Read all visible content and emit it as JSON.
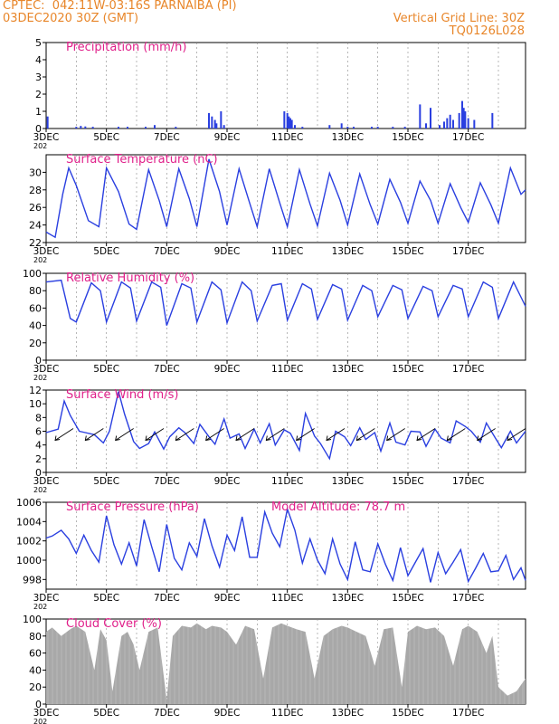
{
  "header": {
    "source": "CPTEC:",
    "location": "042:11W-03:16S  PARNAIBA (PI)",
    "run": "03DEC2020 30Z (GMT)",
    "grid_note": "Vertical Grid Line: 30Z",
    "product_code": "TQ0126L028"
  },
  "x_axis": {
    "tick_labels": [
      "3DEC",
      "5DEC",
      "7DEC",
      "9DEC",
      "11DEC",
      "13DEC",
      "15DEC",
      "17DEC"
    ],
    "tick_days": [
      0,
      2,
      4,
      6,
      8,
      10,
      12,
      14
    ],
    "year_fragment": "202",
    "range_days": [
      0,
      15.9
    ]
  },
  "colors": {
    "title": "#e0208a",
    "line": "#2a3fe0",
    "bar": "#2a3fe0",
    "cloud": "#a8a8a8",
    "header": "#e8862a",
    "grid": "#888888"
  },
  "chart_data": [
    {
      "id": "precip",
      "type": "bar",
      "title": "Precipitation (mm/h)",
      "ylim": [
        0,
        5
      ],
      "yticks": [
        0,
        1,
        2,
        3,
        4,
        5
      ],
      "x": [
        0.05,
        1.0,
        1.15,
        1.3,
        1.55,
        2.4,
        2.7,
        3.3,
        3.6,
        4.3,
        5.4,
        5.5,
        5.6,
        5.65,
        5.8,
        5.9,
        7.9,
        8.0,
        8.05,
        8.1,
        8.15,
        8.25,
        8.5,
        9.4,
        9.8,
        10.0,
        10.2,
        10.8,
        11.0,
        11.5,
        11.9,
        12.4,
        12.6,
        12.75,
        13.05,
        13.2,
        13.3,
        13.4,
        13.5,
        13.7,
        13.8,
        13.85,
        13.9,
        14.0,
        14.2,
        14.8
      ],
      "values": [
        0.7,
        0.1,
        0.15,
        0.12,
        0.1,
        0.1,
        0.1,
        0.1,
        0.2,
        0.1,
        0.9,
        0.7,
        0.5,
        0.3,
        1.0,
        0.2,
        1.0,
        0.9,
        0.7,
        0.6,
        0.5,
        0.2,
        0.1,
        0.2,
        0.3,
        0.1,
        0.1,
        0.1,
        0.1,
        0.1,
        0.1,
        1.4,
        0.3,
        1.2,
        0.2,
        0.4,
        0.6,
        0.8,
        0.5,
        0.9,
        1.6,
        1.2,
        1.0,
        0.6,
        0.5,
        0.9
      ]
    },
    {
      "id": "temp",
      "type": "line",
      "title": "Surface Temperature (nC)",
      "ylim": [
        22,
        32
      ],
      "yticks": [
        22,
        24,
        26,
        28,
        30
      ],
      "x": [
        0,
        0.3,
        0.55,
        0.75,
        1.0,
        1.4,
        1.75,
        2.0,
        2.4,
        2.75,
        3.0,
        3.4,
        3.75,
        4.0,
        4.4,
        4.75,
        5.0,
        5.4,
        5.75,
        6.0,
        6.4,
        6.75,
        7.0,
        7.4,
        7.75,
        8.0,
        8.4,
        8.75,
        9.0,
        9.4,
        9.75,
        10.0,
        10.4,
        10.75,
        11.0,
        11.4,
        11.75,
        12.0,
        12.4,
        12.75,
        13.0,
        13.4,
        13.75,
        14.0,
        14.4,
        14.75,
        15.0,
        15.4,
        15.75,
        15.9
      ],
      "values": [
        23.2,
        22.6,
        27.5,
        30.5,
        28.5,
        24.5,
        23.8,
        30.5,
        27.8,
        24.1,
        23.5,
        30.3,
        26.8,
        23.8,
        30.4,
        27.0,
        23.8,
        31.5,
        27.8,
        24.0,
        30.4,
        26.5,
        23.8,
        30.4,
        26.5,
        23.8,
        30.3,
        26.4,
        23.9,
        29.9,
        26.8,
        24.0,
        29.8,
        26.3,
        24.1,
        29.2,
        26.6,
        24.2,
        29.0,
        26.8,
        24.2,
        28.7,
        26.0,
        24.3,
        28.8,
        26.3,
        24.2,
        30.5,
        27.5,
        28.0
      ]
    },
    {
      "id": "rh",
      "type": "line",
      "title": "Relative Humidity (%)",
      "ylim": [
        0,
        100
      ],
      "yticks": [
        0,
        20,
        40,
        60,
        80,
        100
      ],
      "x": [
        0,
        0.5,
        0.8,
        1.0,
        1.5,
        1.8,
        2.0,
        2.5,
        2.8,
        3.0,
        3.5,
        3.8,
        4.0,
        4.5,
        4.8,
        5.0,
        5.5,
        5.8,
        6.0,
        6.5,
        6.8,
        7.0,
        7.5,
        7.8,
        8.0,
        8.5,
        8.8,
        9.0,
        9.5,
        9.8,
        10.0,
        10.5,
        10.8,
        11.0,
        11.5,
        11.8,
        12.0,
        12.5,
        12.8,
        13.0,
        13.5,
        13.8,
        14.0,
        14.5,
        14.8,
        15.0,
        15.5,
        15.9
      ],
      "values": [
        90,
        92,
        48,
        44,
        89,
        80,
        44,
        90,
        83,
        45,
        90,
        84,
        40,
        88,
        83,
        44,
        90,
        81,
        43,
        90,
        80,
        45,
        86,
        88,
        46,
        88,
        82,
        47,
        87,
        82,
        46,
        86,
        80,
        50,
        86,
        81,
        48,
        85,
        80,
        50,
        86,
        82,
        50,
        90,
        84,
        48,
        90,
        62
      ]
    },
    {
      "id": "wind",
      "type": "line",
      "title": "Surface Wind (m/s)",
      "ylim": [
        0,
        12
      ],
      "yticks": [
        0,
        2,
        4,
        6,
        8,
        10,
        12
      ],
      "x": [
        0,
        0.4,
        0.6,
        0.8,
        1.1,
        1.3,
        1.6,
        1.9,
        2.1,
        2.4,
        2.6,
        2.9,
        3.1,
        3.4,
        3.6,
        3.9,
        4.1,
        4.4,
        4.6,
        4.9,
        5.1,
        5.4,
        5.6,
        5.9,
        6.1,
        6.4,
        6.6,
        6.9,
        7.1,
        7.4,
        7.6,
        7.9,
        8.1,
        8.4,
        8.6,
        8.9,
        9.1,
        9.4,
        9.6,
        9.9,
        10.1,
        10.4,
        10.6,
        10.9,
        11.1,
        11.4,
        11.6,
        11.9,
        12.1,
        12.4,
        12.6,
        12.9,
        13.1,
        13.4,
        13.6,
        13.9,
        14.1,
        14.4,
        14.6,
        14.9,
        15.1,
        15.4,
        15.6,
        15.9
      ],
      "values": [
        5.8,
        6.3,
        10.4,
        8.3,
        6.0,
        5.8,
        5.5,
        4.3,
        6.0,
        11.8,
        8.5,
        4.5,
        3.5,
        4.2,
        5.9,
        3.4,
        5.2,
        6.5,
        5.8,
        4.2,
        7.0,
        5.2,
        4.1,
        7.8,
        5.0,
        5.6,
        3.5,
        6.3,
        4.3,
        7.1,
        4.0,
        6.2,
        5.7,
        3.2,
        8.6,
        5.3,
        4.2,
        2.0,
        6.0,
        5.2,
        3.9,
        6.5,
        4.8,
        5.8,
        3.1,
        7.2,
        4.4,
        4.0,
        6.0,
        5.9,
        3.8,
        6.3,
        5.0,
        4.3,
        7.5,
        6.7,
        6.0,
        4.4,
        7.2,
        5.0,
        3.6,
        6.0,
        4.3,
        6.0
      ]
    },
    {
      "id": "pressure",
      "type": "line",
      "title": "Surface Pressure (hPa)",
      "annotation": "Model Altitude: 78.7 m",
      "ylim": [
        997,
        1006
      ],
      "yticks": [
        998,
        1000,
        1002,
        1004,
        1006
      ],
      "x": [
        0,
        0.2,
        0.5,
        0.75,
        1.0,
        1.25,
        1.5,
        1.75,
        2.0,
        2.25,
        2.5,
        2.75,
        3.0,
        3.25,
        3.5,
        3.75,
        4.0,
        4.25,
        4.5,
        4.75,
        5.0,
        5.25,
        5.5,
        5.75,
        6.0,
        6.25,
        6.5,
        6.75,
        7.0,
        7.25,
        7.5,
        7.75,
        8.0,
        8.25,
        8.5,
        8.75,
        9.0,
        9.25,
        9.5,
        9.75,
        10.0,
        10.25,
        10.5,
        10.75,
        11.0,
        11.25,
        11.5,
        11.75,
        12.0,
        12.25,
        12.5,
        12.75,
        13.0,
        13.25,
        13.5,
        13.75,
        14.0,
        14.25,
        14.5,
        14.75,
        15.0,
        15.25,
        15.5,
        15.75,
        15.9
      ],
      "values": [
        1002.3,
        1002.5,
        1003.1,
        1002.2,
        1000.7,
        1002.6,
        1001.0,
        999.8,
        1004.6,
        1001.6,
        999.6,
        1001.8,
        999.4,
        1004.2,
        1001.4,
        998.8,
        1003.7,
        1000.2,
        999.0,
        1001.8,
        1000.4,
        1004.3,
        1001.5,
        999.3,
        1002.6,
        1001.0,
        1004.5,
        1000.3,
        1000.3,
        1005.0,
        1002.8,
        1001.4,
        1005.3,
        1003.1,
        999.7,
        1002.2,
        1000.0,
        998.6,
        1002.2,
        999.6,
        998.0,
        1001.9,
        999.0,
        998.8,
        1001.7,
        999.6,
        997.9,
        1001.3,
        998.4,
        999.8,
        1001.2,
        997.7,
        1000.8,
        998.6,
        999.8,
        1001.1,
        997.8,
        999.2,
        1000.7,
        998.8,
        998.9,
        1000.5,
        998.0,
        999.2,
        997.9
      ]
    },
    {
      "id": "cloud",
      "type": "area",
      "title": "Cloud Cover (%)",
      "ylim": [
        0,
        100
      ],
      "yticks": [
        0,
        20,
        40,
        60,
        80,
        100
      ],
      "x": [
        0,
        0.2,
        0.5,
        0.8,
        1.0,
        1.3,
        1.6,
        1.8,
        2.0,
        2.2,
        2.5,
        2.7,
        2.9,
        3.1,
        3.4,
        3.7,
        4.0,
        4.2,
        4.5,
        4.8,
        5.0,
        5.3,
        5.5,
        5.8,
        6.0,
        6.3,
        6.6,
        6.9,
        7.2,
        7.5,
        7.8,
        8.0,
        8.3,
        8.6,
        8.9,
        9.2,
        9.5,
        9.8,
        10.0,
        10.3,
        10.6,
        10.9,
        11.2,
        11.5,
        11.8,
        12.0,
        12.3,
        12.6,
        12.9,
        13.2,
        13.5,
        13.8,
        14.0,
        14.3,
        14.6,
        14.8,
        15.0,
        15.3,
        15.6,
        15.9
      ],
      "values": [
        85,
        90,
        80,
        88,
        92,
        85,
        40,
        88,
        75,
        15,
        80,
        85,
        70,
        40,
        85,
        90,
        5,
        80,
        92,
        90,
        95,
        88,
        92,
        90,
        85,
        70,
        92,
        88,
        30,
        90,
        95,
        92,
        88,
        85,
        30,
        80,
        88,
        92,
        90,
        85,
        80,
        45,
        88,
        90,
        20,
        85,
        92,
        88,
        90,
        80,
        45,
        88,
        92,
        85,
        60,
        80,
        20,
        10,
        15,
        30
      ]
    }
  ]
}
